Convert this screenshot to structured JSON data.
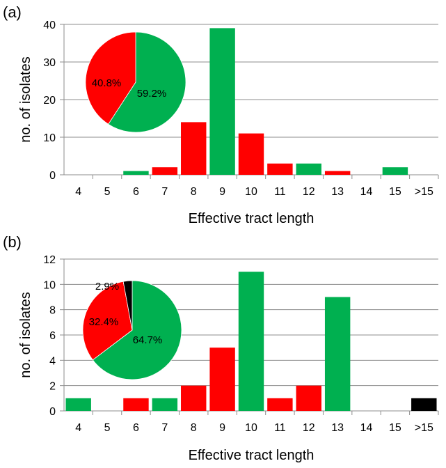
{
  "chart_data": [
    {
      "panel": "(a)",
      "type": "bar",
      "xlabel": "Effective tract length",
      "ylabel": "no. of isolates",
      "ylim": [
        0,
        40
      ],
      "yticks": [
        "0",
        "10",
        "20",
        "30",
        "40"
      ],
      "grid": true,
      "categories": [
        "4",
        "5",
        "6",
        "7",
        "8",
        "9",
        "10",
        "11",
        "12",
        "13",
        "14",
        "15",
        ">15"
      ],
      "values": [
        0,
        0,
        1,
        2,
        14,
        39,
        11,
        3,
        3,
        1,
        0,
        2,
        0
      ],
      "bar_colors": [
        "#00b050",
        "#00b050",
        "#00b050",
        "#ff0000",
        "#ff0000",
        "#00b050",
        "#ff0000",
        "#ff0000",
        "#00b050",
        "#ff0000",
        "#00b050",
        "#00b050",
        "#00b050"
      ],
      "inset_pie": {
        "type": "pie",
        "slices": [
          {
            "label": "59.2%",
            "value": 59.2,
            "color": "#00b050"
          },
          {
            "label": "40.8%",
            "value": 40.8,
            "color": "#ff0000"
          }
        ]
      }
    },
    {
      "panel": "(b)",
      "type": "bar",
      "xlabel": "Effective tract length",
      "ylabel": "no. of isolates",
      "ylim": [
        0,
        12
      ],
      "yticks": [
        "0",
        "2",
        "4",
        "6",
        "8",
        "10",
        "12"
      ],
      "grid": true,
      "categories": [
        "4",
        "5",
        "6",
        "7",
        "8",
        "9",
        "10",
        "11",
        "12",
        "13",
        "14",
        "15",
        ">15"
      ],
      "values": [
        1,
        0,
        1,
        1,
        2,
        5,
        11,
        1,
        2,
        9,
        0,
        0,
        1
      ],
      "bar_colors": [
        "#00b050",
        "#00b050",
        "#ff0000",
        "#00b050",
        "#ff0000",
        "#ff0000",
        "#00b050",
        "#ff0000",
        "#ff0000",
        "#00b050",
        "#00b050",
        "#00b050",
        "#000000"
      ],
      "inset_pie": {
        "type": "pie",
        "slices": [
          {
            "label": "64.7%",
            "value": 64.7,
            "color": "#00b050"
          },
          {
            "label": "32.4%",
            "value": 32.4,
            "color": "#ff0000"
          },
          {
            "label": "2.9%",
            "value": 2.9,
            "color": "#000000"
          }
        ]
      }
    }
  ]
}
